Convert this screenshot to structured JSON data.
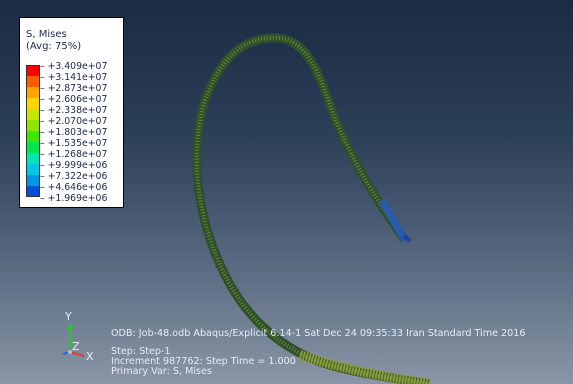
{
  "legend": {
    "title_line1": "S, Mises",
    "title_line2": "(Avg: 75%)",
    "ticks": [
      "+3.409e+07",
      "+3.141e+07",
      "+2.873e+07",
      "+2.606e+07",
      "+2.338e+07",
      "+2.070e+07",
      "+1.803e+07",
      "+1.535e+07",
      "+1.268e+07",
      "+9.999e+06",
      "+7.322e+06",
      "+4.646e+06",
      "+1.969e+06"
    ],
    "colors": [
      "#ff0000",
      "#ff5a00",
      "#ffa500",
      "#ffd700",
      "#c8e600",
      "#8ce600",
      "#3fe600",
      "#00e650",
      "#00e6b4",
      "#00c8e6",
      "#0096e6",
      "#0050dc",
      "#0000d0"
    ]
  },
  "info": {
    "odb_line": "ODB: Job-48.odb    Abaqus/Explicit 6.14-1    Sat Dec 24 09:35:33 Iran Standard Time 2016",
    "step_line": "Step: Step-1",
    "increment_line": "Increment    987762: Step Time =    1.000",
    "primary_var_line": "Primary Var: S, Mises"
  },
  "triad": {
    "y_label": "Y",
    "z_label": "Z",
    "x_label": "X"
  }
}
